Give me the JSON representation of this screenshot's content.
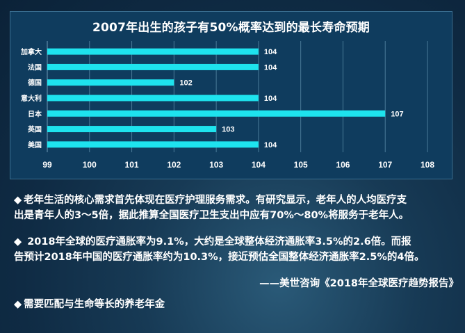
{
  "chart_data": {
    "type": "bar",
    "orientation": "horizontal",
    "title": "2007年出生的孩子有50%概率达到的最长寿命预期",
    "categories": [
      "加拿大",
      "法国",
      "德国",
      "意大利",
      "日本",
      "英国",
      "美国"
    ],
    "values": [
      104,
      104,
      102,
      104,
      107,
      103,
      104
    ],
    "value_labels": [
      "104",
      "104",
      "102",
      "104",
      "107",
      "103",
      "104"
    ],
    "xlim": [
      99,
      108
    ],
    "xticks": [
      "99",
      "100",
      "101",
      "102",
      "103",
      "104",
      "105",
      "106",
      "107",
      "108"
    ],
    "bar_color": "#1ee3ee",
    "grid": true,
    "xlabel": "",
    "ylabel": ""
  },
  "text": {
    "bullet": "◆",
    "para1_line1": "老年生活的核心需求首先体现在医疗护理服务需求。有研究显示，老年人的人均医疗支",
    "para1_line2": "出是青年人的3～5倍，据此推算全国医疗卫生支出中应有70%～80%将服务于老年人。",
    "para2_line1": " 2018年全球的医疗通胀率为9.1%，大约是全球整体经济通胀率3.5%的2.6倍。而报",
    "para2_line2": "告预计2018年中国的医疗通胀率约为10.3%，接近预估全国整体经济通胀率2.5%的4倍。",
    "citation": "——美世咨询《2018年全球医疗趋势报告》",
    "para3": "需要匹配与生命等长的养老年金"
  }
}
